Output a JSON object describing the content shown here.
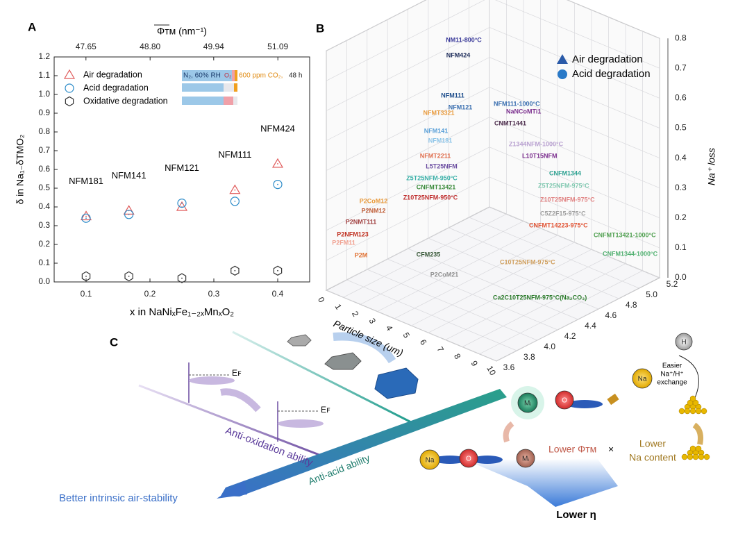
{
  "panel_labels": [
    "A",
    "B",
    "C"
  ],
  "chart_data": [
    {
      "type": "scatter",
      "x_label": "x in NaNiₓFe₁₋₂ₓMnₓO₂",
      "x2_label": "Φᴛᴍ (nm⁻¹)",
      "y_label": "δ in Na₁₋δTMO₂",
      "x": [
        0.1,
        0.167,
        0.25,
        0.333,
        0.4
      ],
      "xlim": [
        0.05,
        0.45
      ],
      "xticks": [
        0.1,
        0.2,
        0.3,
        0.4
      ],
      "x2lim": [
        47.08,
        51.66
      ],
      "x2ticks": [
        47.65,
        {
          "value": 48.8,
          "label": "48.80"
        },
        49.94,
        51.09
      ],
      "ylim": [
        0,
        1.2
      ],
      "yticks": [
        {
          "value": 0,
          "label": "0.0"
        },
        0.1,
        0.2,
        0.3,
        0.4,
        0.5,
        0.6,
        0.7,
        0.8,
        0.9,
        {
          "value": 1,
          "label": "1.0"
        },
        1.1,
        1.2
      ],
      "point_labels": [
        "NFM181",
        "NFM141",
        "NFM121",
        "NFM111",
        "NFM424"
      ],
      "series": [
        {
          "name": "Air degradation",
          "color": "#e05a5a",
          "marker": "triangle",
          "values": [
            0.35,
            0.38,
            0.4,
            0.49,
            0.63
          ]
        },
        {
          "name": "Acid degradation",
          "color": "#2a8ac8",
          "marker": "circle",
          "values": [
            0.34,
            0.36,
            0.42,
            0.43,
            0.52
          ]
        },
        {
          "name": "Oxidative degradation",
          "color": "#333333",
          "marker": "hexagon",
          "values": [
            0.03,
            0.03,
            0.02,
            0.06,
            0.06
          ]
        }
      ],
      "conditions": [
        "N₂, 60% RH",
        "O₂",
        "600 ppm CO₂,",
        "48 h"
      ]
    },
    {
      "type": "scatter3d",
      "x_label": "Particle size (um)",
      "z_label": "Na⁺ loss",
      "xlim": [
        0,
        10
      ],
      "xticks": [
        0,
        1,
        2,
        3,
        4,
        5,
        6,
        7,
        8,
        9,
        10
      ],
      "ylim": [
        3.6,
        5.2
      ],
      "yticks": [
        3.6,
        3.8,
        {
          "value": 4,
          "label": "4.0"
        },
        4.2,
        4.4,
        4.6,
        4.8,
        {
          "value": 5,
          "label": "5.0"
        },
        5.2
      ],
      "zlim": [
        0,
        0.8
      ],
      "zticks": [
        {
          "value": 0,
          "label": "0.0"
        },
        0.1,
        0.2,
        0.3,
        0.4,
        0.5,
        0.6,
        0.7,
        0.8
      ],
      "series": [
        {
          "name": "Air degradation",
          "color": "#2a5aa8"
        },
        {
          "name": "Acid degradation",
          "color": "#2a7ac8"
        }
      ],
      "labels": [
        "NM11-800°C",
        "NFM424",
        "NFM111",
        "NFM111-1000°C",
        "NFM121",
        "NFMT3321",
        "NaNCoMTi1",
        "CNMT1441",
        "NFM141",
        "NFM181",
        "Z1344NFM-1000°C",
        "NFMT2211",
        "L10T15NFM",
        "L5T25NFM",
        "CNFM1344",
        "Z5T25NFM-950°C",
        "Z5T25NFM-975°C",
        "CNFMT13421",
        "Z10T25NFM-975°C",
        "P2CoM12",
        "P2NM12",
        "Z10T25NFM-950°C",
        "C5Z2F15-975°C",
        "P2NMT111",
        "CNFMT14223-975°C",
        "P2NFM123",
        "CNFMT13421-1000°C",
        "P2FM11",
        "CNFM1344-1000°C",
        "P2M",
        "CFM235",
        "C10T25NFM-975°C",
        "P2CoM21",
        "Ca2C10T25NFM-975°C(Na₂CO₃)"
      ]
    }
  ],
  "diagram": {
    "fermi_level": "Eꜰ",
    "anti_oxidation": "Anti-oxidation ability",
    "anti_acid": "Anti-acid ability",
    "outcome": "Better intrinsic air-stability",
    "exchange": [
      "Easier",
      "Na⁺/H⁺",
      "exchange"
    ],
    "lower_phi": "Lower Φᴛᴍ",
    "times": "×",
    "lower_na": [
      "Lower",
      "Na content"
    ],
    "result": "Lower η",
    "atoms": {
      "na": "Na",
      "o": "O",
      "m": "Mᵢ",
      "h": "H"
    }
  }
}
